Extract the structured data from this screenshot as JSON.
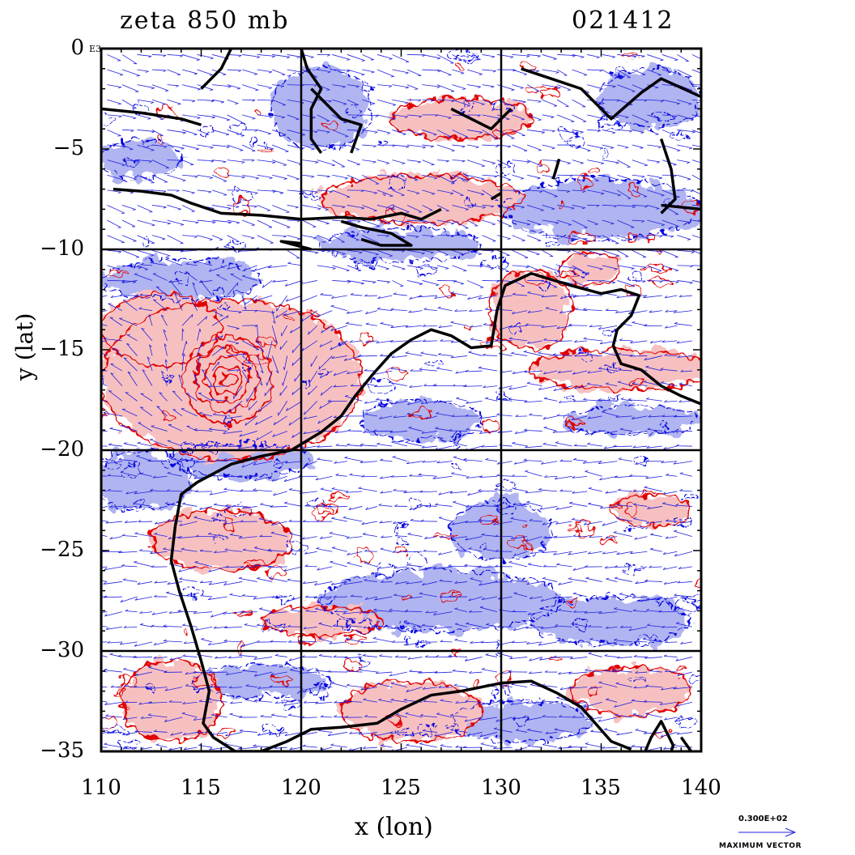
{
  "title": {
    "left": "zeta 850 mb",
    "right": "021412"
  },
  "corner_mark": "E3",
  "legend": {
    "value": "0.300E+02",
    "label": "MAXIMUM VECTOR"
  },
  "colors": {
    "positive_fill": "#f7c0c0",
    "positive_line": "#e00000",
    "negative_fill": "#b0b4f0",
    "negative_line": "#0000e0",
    "coast": "#000000",
    "vector": "#2020e0"
  },
  "chart_data": {
    "type": "contour",
    "xlabel": "x (lon)",
    "ylabel": "y (lat)",
    "xlim": [
      110,
      140
    ],
    "ylim": [
      -35,
      0
    ],
    "x_ticks": [
      110,
      115,
      120,
      125,
      130,
      135,
      140
    ],
    "y_ticks": [
      0,
      -5,
      -10,
      -15,
      -20,
      -25,
      -30,
      -35
    ],
    "x_tick_labels": [
      "110",
      "115",
      "120",
      "125",
      "130",
      "135",
      "140"
    ],
    "y_tick_labels": [
      "0",
      "−5",
      "−10",
      "−15",
      "−20",
      "−25",
      "−30",
      "−35"
    ],
    "grid_x": [
      120,
      130
    ],
    "grid_y": [
      -10,
      -20,
      -30
    ],
    "vortex_center": [
      116.3,
      -16.5
    ],
    "positive_regions": [
      {
        "cx": 116.5,
        "cy": -16.5,
        "rx": 6.5,
        "ry": 4.0
      },
      {
        "cx": 113.0,
        "cy": -14.0,
        "rx": 3.0,
        "ry": 1.8
      },
      {
        "cx": 126.0,
        "cy": -7.5,
        "rx": 5.0,
        "ry": 1.2
      },
      {
        "cx": 131.5,
        "cy": -13.0,
        "rx": 2.0,
        "ry": 2.0
      },
      {
        "cx": 136.0,
        "cy": -16.0,
        "rx": 4.5,
        "ry": 1.0
      },
      {
        "cx": 116.0,
        "cy": -24.5,
        "rx": 3.5,
        "ry": 1.5
      },
      {
        "cx": 113.5,
        "cy": -32.5,
        "rx": 2.5,
        "ry": 2.0
      },
      {
        "cx": 125.5,
        "cy": -33.0,
        "rx": 3.5,
        "ry": 1.5
      },
      {
        "cx": 121.0,
        "cy": -28.5,
        "rx": 3.0,
        "ry": 0.7
      },
      {
        "cx": 136.5,
        "cy": -32.0,
        "rx": 3.0,
        "ry": 1.2
      },
      {
        "cx": 137.5,
        "cy": -23.0,
        "rx": 2.0,
        "ry": 0.8
      },
      {
        "cx": 134.5,
        "cy": -11.0,
        "rx": 1.5,
        "ry": 0.8
      },
      {
        "cx": 128.0,
        "cy": -3.5,
        "rx": 3.5,
        "ry": 1.0
      }
    ],
    "negative_regions": [
      {
        "cx": 114.0,
        "cy": -11.5,
        "rx": 4.0,
        "ry": 1.0
      },
      {
        "cx": 112.0,
        "cy": -21.5,
        "rx": 2.5,
        "ry": 1.5
      },
      {
        "cx": 117.0,
        "cy": -20.5,
        "rx": 3.5,
        "ry": 0.8
      },
      {
        "cx": 125.0,
        "cy": -9.8,
        "rx": 4.0,
        "ry": 0.8
      },
      {
        "cx": 135.0,
        "cy": -8.0,
        "rx": 5.0,
        "ry": 1.5
      },
      {
        "cx": 136.5,
        "cy": -18.5,
        "rx": 3.5,
        "ry": 0.7
      },
      {
        "cx": 127.0,
        "cy": -27.5,
        "rx": 6.0,
        "ry": 1.5
      },
      {
        "cx": 135.5,
        "cy": -28.5,
        "rx": 4.0,
        "ry": 1.2
      },
      {
        "cx": 118.0,
        "cy": -31.5,
        "rx": 3.5,
        "ry": 0.8
      },
      {
        "cx": 131.0,
        "cy": -33.5,
        "rx": 3.5,
        "ry": 1.0
      },
      {
        "cx": 121.0,
        "cy": -3.0,
        "rx": 2.5,
        "ry": 2.0
      },
      {
        "cx": 112.0,
        "cy": -5.5,
        "rx": 2.0,
        "ry": 1.0
      },
      {
        "cx": 137.5,
        "cy": -2.5,
        "rx": 2.5,
        "ry": 1.5
      },
      {
        "cx": 126.0,
        "cy": -18.5,
        "rx": 3.0,
        "ry": 1.0
      },
      {
        "cx": 130.0,
        "cy": -24.0,
        "rx": 2.5,
        "ry": 1.5
      }
    ],
    "coastlines": [
      [
        [
          110.6,
          -7.0
        ],
        [
          112.0,
          -7.1
        ],
        [
          113.5,
          -7.3
        ],
        [
          114.5,
          -7.7
        ],
        [
          116.0,
          -8.2
        ],
        [
          118.0,
          -8.3
        ],
        [
          120.0,
          -8.5
        ],
        [
          122.0,
          -8.4
        ],
        [
          123.5,
          -8.5
        ],
        [
          125.0,
          -8.2
        ],
        [
          126.0,
          -8.5
        ],
        [
          127.0,
          -8.0
        ]
      ],
      [
        [
          122.0,
          -8.6
        ],
        [
          123.0,
          -8.9
        ],
        [
          124.5,
          -9.2
        ],
        [
          125.5,
          -9.8
        ],
        [
          124.0,
          -9.8
        ],
        [
          123.0,
          -9.5
        ]
      ],
      [
        [
          110.0,
          -3.0
        ],
        [
          112.0,
          -3.2
        ],
        [
          114.0,
          -3.5
        ],
        [
          115.0,
          -3.8
        ]
      ],
      [
        [
          115.0,
          -2.0
        ],
        [
          116.0,
          -1.0
        ],
        [
          116.5,
          0.0
        ]
      ],
      [
        [
          120.0,
          0.0
        ],
        [
          120.3,
          -1.0
        ],
        [
          121.0,
          -2.0
        ],
        [
          120.5,
          -3.0
        ],
        [
          120.5,
          -4.5
        ],
        [
          121.0,
          -5.2
        ]
      ],
      [
        [
          120.5,
          -2.0
        ],
        [
          122.0,
          -3.5
        ],
        [
          123.0,
          -3.8
        ],
        [
          122.5,
          -5.2
        ]
      ],
      [
        [
          127.5,
          -3.0
        ],
        [
          128.5,
          -3.5
        ],
        [
          129.5,
          -4.0
        ],
        [
          130.5,
          -3.0
        ]
      ],
      [
        [
          131.0,
          -1.0
        ],
        [
          132.5,
          -1.5
        ],
        [
          134.0,
          -2.0
        ],
        [
          135.5,
          -3.5
        ],
        [
          137.0,
          -2.2
        ],
        [
          138.0,
          -1.5
        ],
        [
          140.0,
          -2.4
        ]
      ],
      [
        [
          138.0,
          -4.5
        ],
        [
          138.5,
          -6.0
        ],
        [
          138.7,
          -7.5
        ],
        [
          138.0,
          -8.2
        ]
      ],
      [
        [
          138.0,
          -7.8
        ],
        [
          140.0,
          -8.0
        ]
      ],
      [
        [
          132.6,
          -6.5
        ],
        [
          132.9,
          -5.5
        ]
      ],
      [
        [
          129.5,
          -7.5
        ],
        [
          130.0,
          -7.2
        ]
      ],
      [
        [
          120.0,
          -9.7
        ],
        [
          119.0,
          -9.6
        ],
        [
          120.5,
          -10.0
        ]
      ],
      [
        [
          140.0,
          -17.7
        ],
        [
          139.0,
          -17.3
        ],
        [
          138.0,
          -16.8
        ],
        [
          137.0,
          -16.0
        ],
        [
          136.0,
          -15.7
        ],
        [
          135.6,
          -14.8
        ],
        [
          135.8,
          -14.0
        ],
        [
          136.5,
          -13.3
        ],
        [
          136.9,
          -12.3
        ],
        [
          136.0,
          -12.0
        ],
        [
          135.0,
          -12.2
        ],
        [
          133.5,
          -11.8
        ],
        [
          132.5,
          -11.5
        ],
        [
          131.5,
          -11.2
        ],
        [
          130.2,
          -11.8
        ],
        [
          129.8,
          -13.0
        ],
        [
          129.5,
          -14.8
        ],
        [
          128.5,
          -14.9
        ],
        [
          127.5,
          -14.3
        ],
        [
          126.5,
          -14.0
        ],
        [
          125.5,
          -14.5
        ],
        [
          124.5,
          -15.2
        ],
        [
          123.6,
          -16.2
        ],
        [
          122.7,
          -17.3
        ],
        [
          122.0,
          -18.3
        ],
        [
          121.0,
          -19.1
        ],
        [
          119.5,
          -20.0
        ],
        [
          118.0,
          -20.3
        ],
        [
          116.5,
          -20.7
        ],
        [
          114.8,
          -21.6
        ],
        [
          114.0,
          -22.2
        ],
        [
          113.7,
          -23.8
        ],
        [
          113.5,
          -25.5
        ],
        [
          113.9,
          -27.0
        ],
        [
          114.5,
          -28.8
        ],
        [
          115.0,
          -30.5
        ],
        [
          115.4,
          -32.0
        ],
        [
          115.1,
          -33.6
        ],
        [
          115.6,
          -34.3
        ],
        [
          116.7,
          -35.0
        ],
        [
          118.0,
          -35.0
        ],
        [
          119.3,
          -34.5
        ],
        [
          120.5,
          -33.9
        ],
        [
          122.0,
          -33.8
        ],
        [
          123.8,
          -33.6
        ],
        [
          125.0,
          -32.9
        ],
        [
          126.5,
          -32.2
        ],
        [
          128.0,
          -32.0
        ],
        [
          130.0,
          -31.6
        ],
        [
          131.5,
          -31.5
        ],
        [
          132.8,
          -32.1
        ],
        [
          134.0,
          -32.8
        ],
        [
          135.5,
          -34.5
        ],
        [
          136.5,
          -34.9
        ]
      ],
      [
        [
          137.2,
          -35.0
        ],
        [
          137.5,
          -34.3
        ],
        [
          138.0,
          -33.5
        ],
        [
          138.6,
          -34.7
        ],
        [
          138.5,
          -35.0
        ]
      ],
      [
        [
          139.5,
          -35.0
        ],
        [
          139.0,
          -34.3
        ]
      ]
    ]
  }
}
